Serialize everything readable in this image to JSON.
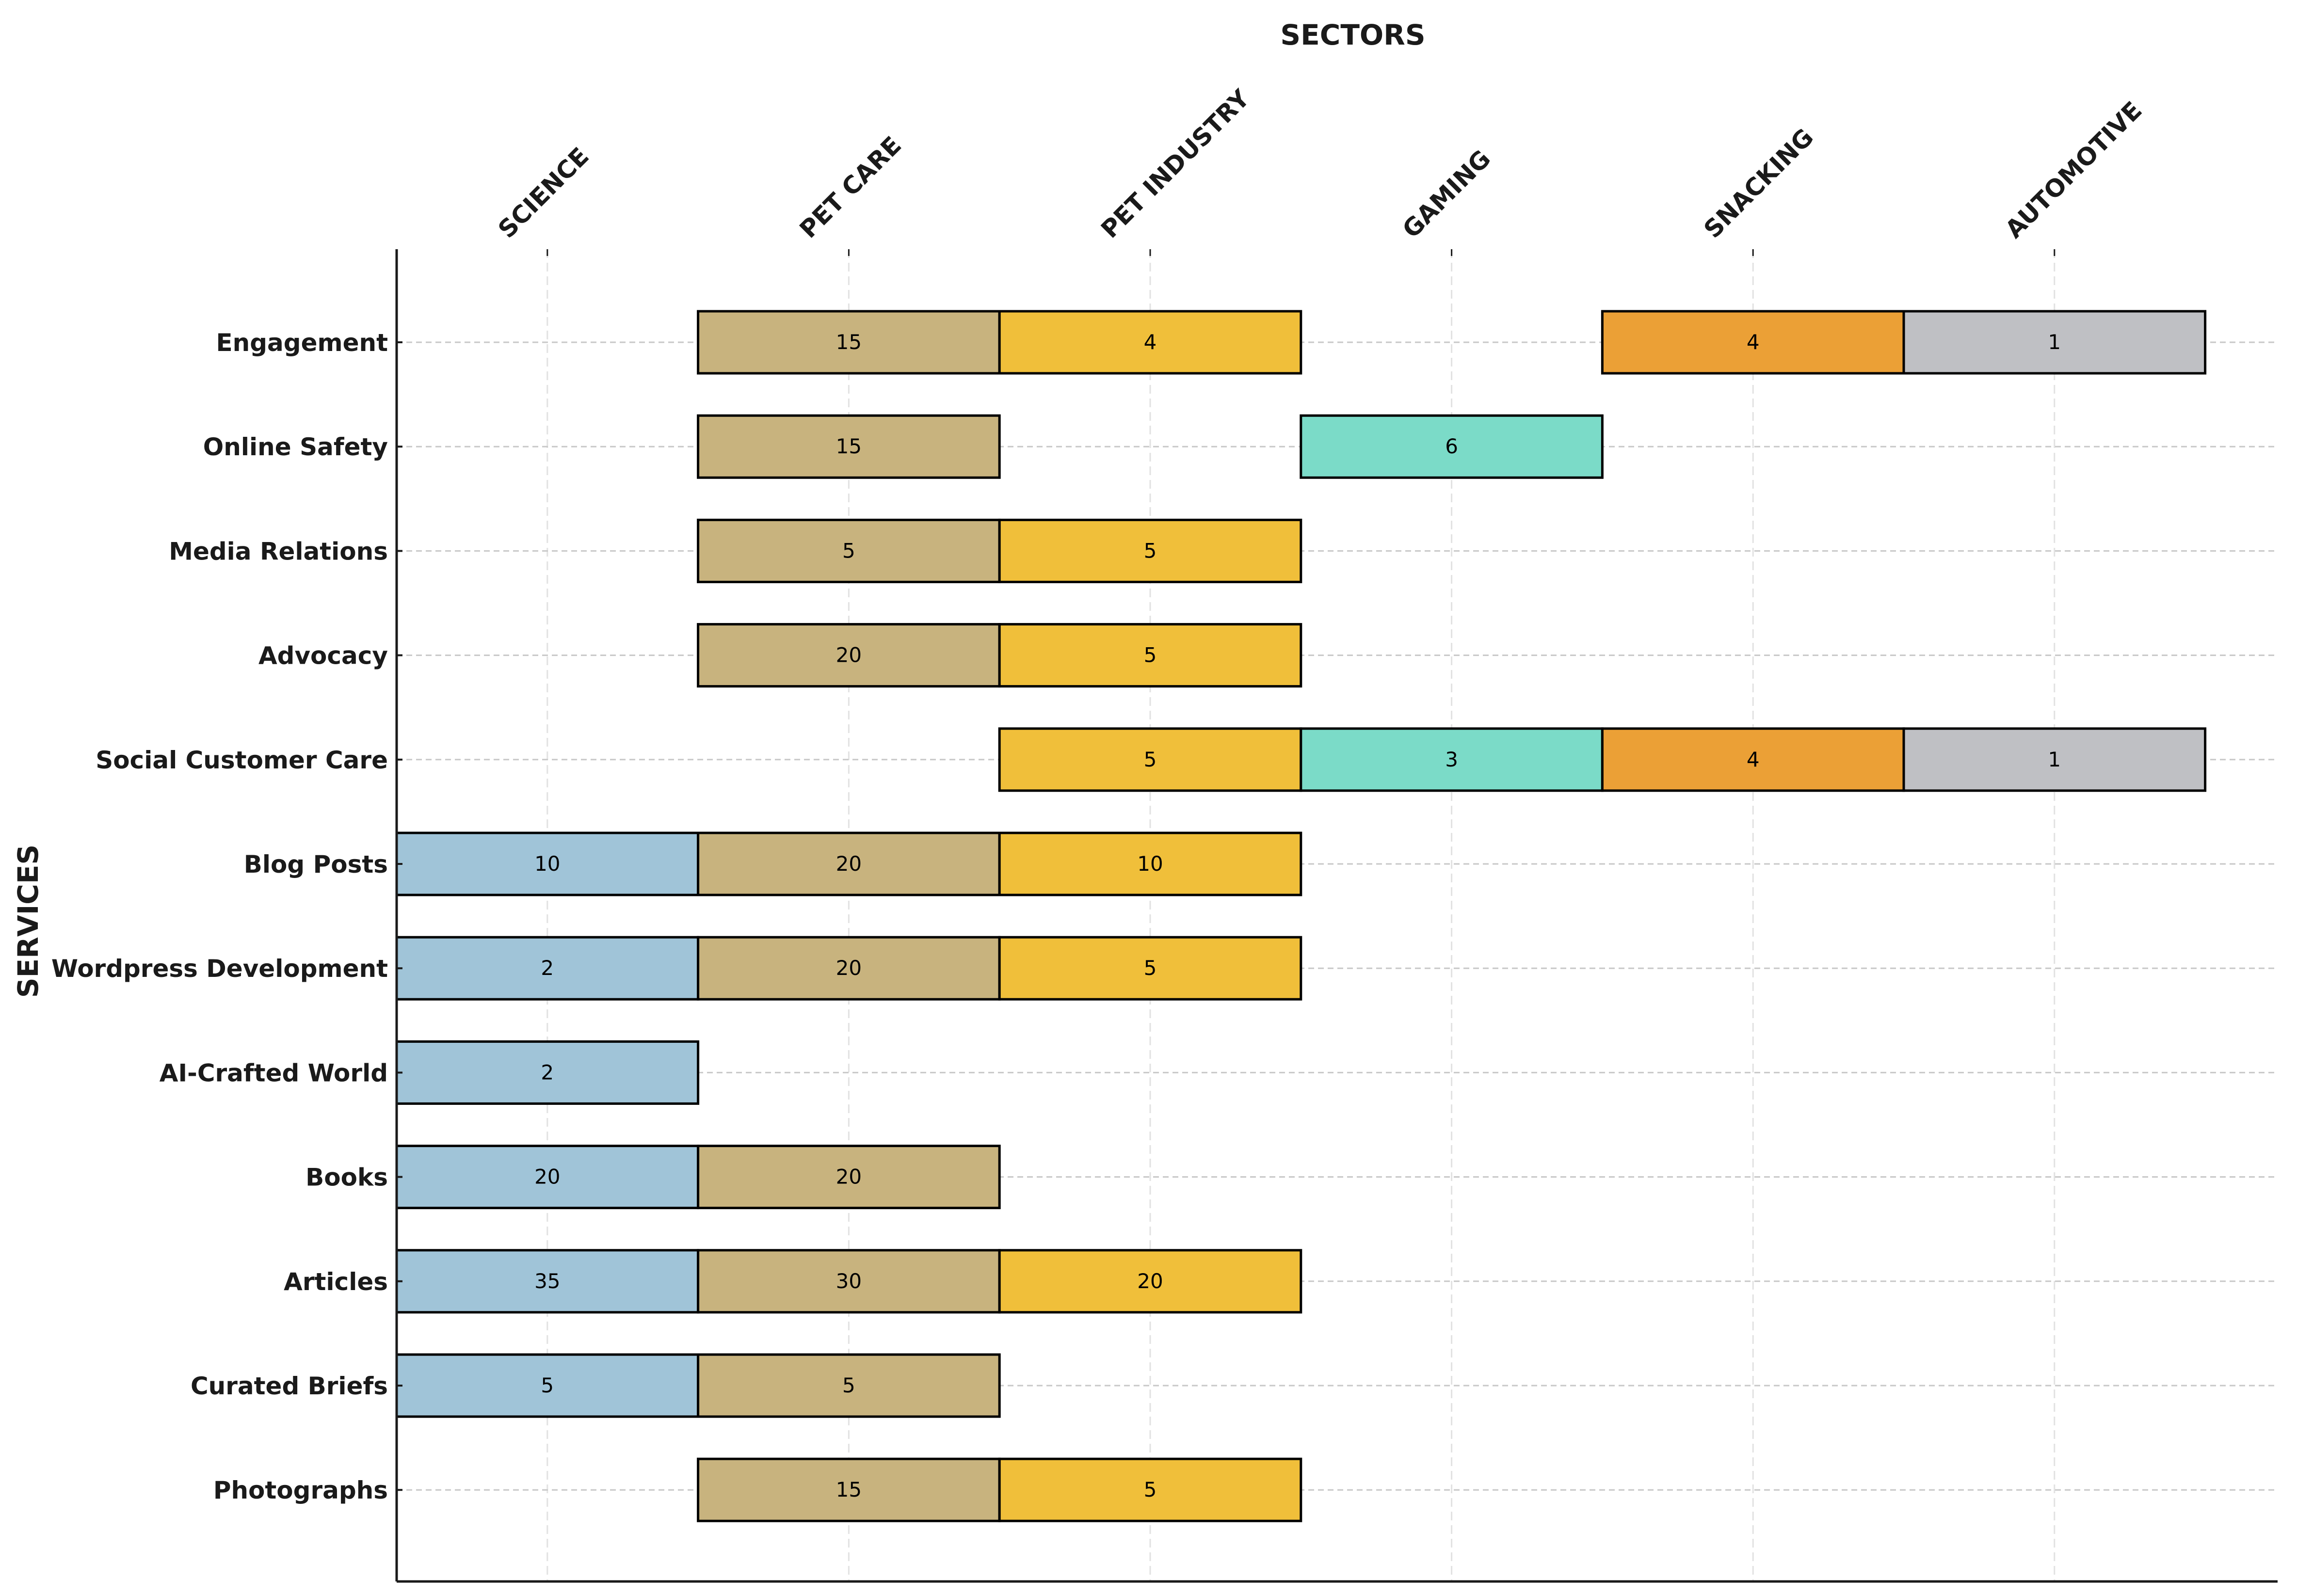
{
  "chart_data": {
    "type": "heatmap",
    "subtype": "gantt-style categorical block chart",
    "title": "SECTORS",
    "xlabel": "SECTORS",
    "ylabel": "SERVICES",
    "x_axis_position": "top",
    "grid": true,
    "categories": [
      "SCIENCE",
      "PET CARE",
      "PET INDUSTRY",
      "GAMING",
      "SNACKING",
      "AUTOMOTIVE"
    ],
    "services": [
      "Engagement",
      "Online Safety",
      "Media Relations",
      "Advocacy",
      "Social Customer Care",
      "Blog Posts",
      "Wordpress Development",
      "AI-Crafted World",
      "Books",
      "Articles",
      "Curated Briefs",
      "Photographs"
    ],
    "colors": {
      "SCIENCE": "#a0c4d8",
      "PET CARE": "#c8b37e",
      "PET INDUSTRY": "#f0bf3a",
      "GAMING": "#7bdbc8",
      "SNACKING": "#eba036",
      "AUTOMOTIVE": "#bfc0c4"
    },
    "values": [
      [
        null,
        15,
        4,
        null,
        4,
        1
      ],
      [
        null,
        15,
        null,
        6,
        null,
        null
      ],
      [
        null,
        5,
        5,
        null,
        null,
        null
      ],
      [
        null,
        20,
        5,
        null,
        null,
        null
      ],
      [
        null,
        null,
        5,
        3,
        4,
        1
      ],
      [
        10,
        20,
        10,
        null,
        null,
        null
      ],
      [
        2,
        20,
        5,
        null,
        null,
        null
      ],
      [
        2,
        null,
        null,
        null,
        null,
        null
      ],
      [
        20,
        20,
        null,
        null,
        null,
        null
      ],
      [
        35,
        30,
        20,
        null,
        null,
        null
      ],
      [
        5,
        5,
        null,
        null,
        null,
        null
      ],
      [
        null,
        15,
        5,
        null,
        null,
        null
      ]
    ]
  }
}
